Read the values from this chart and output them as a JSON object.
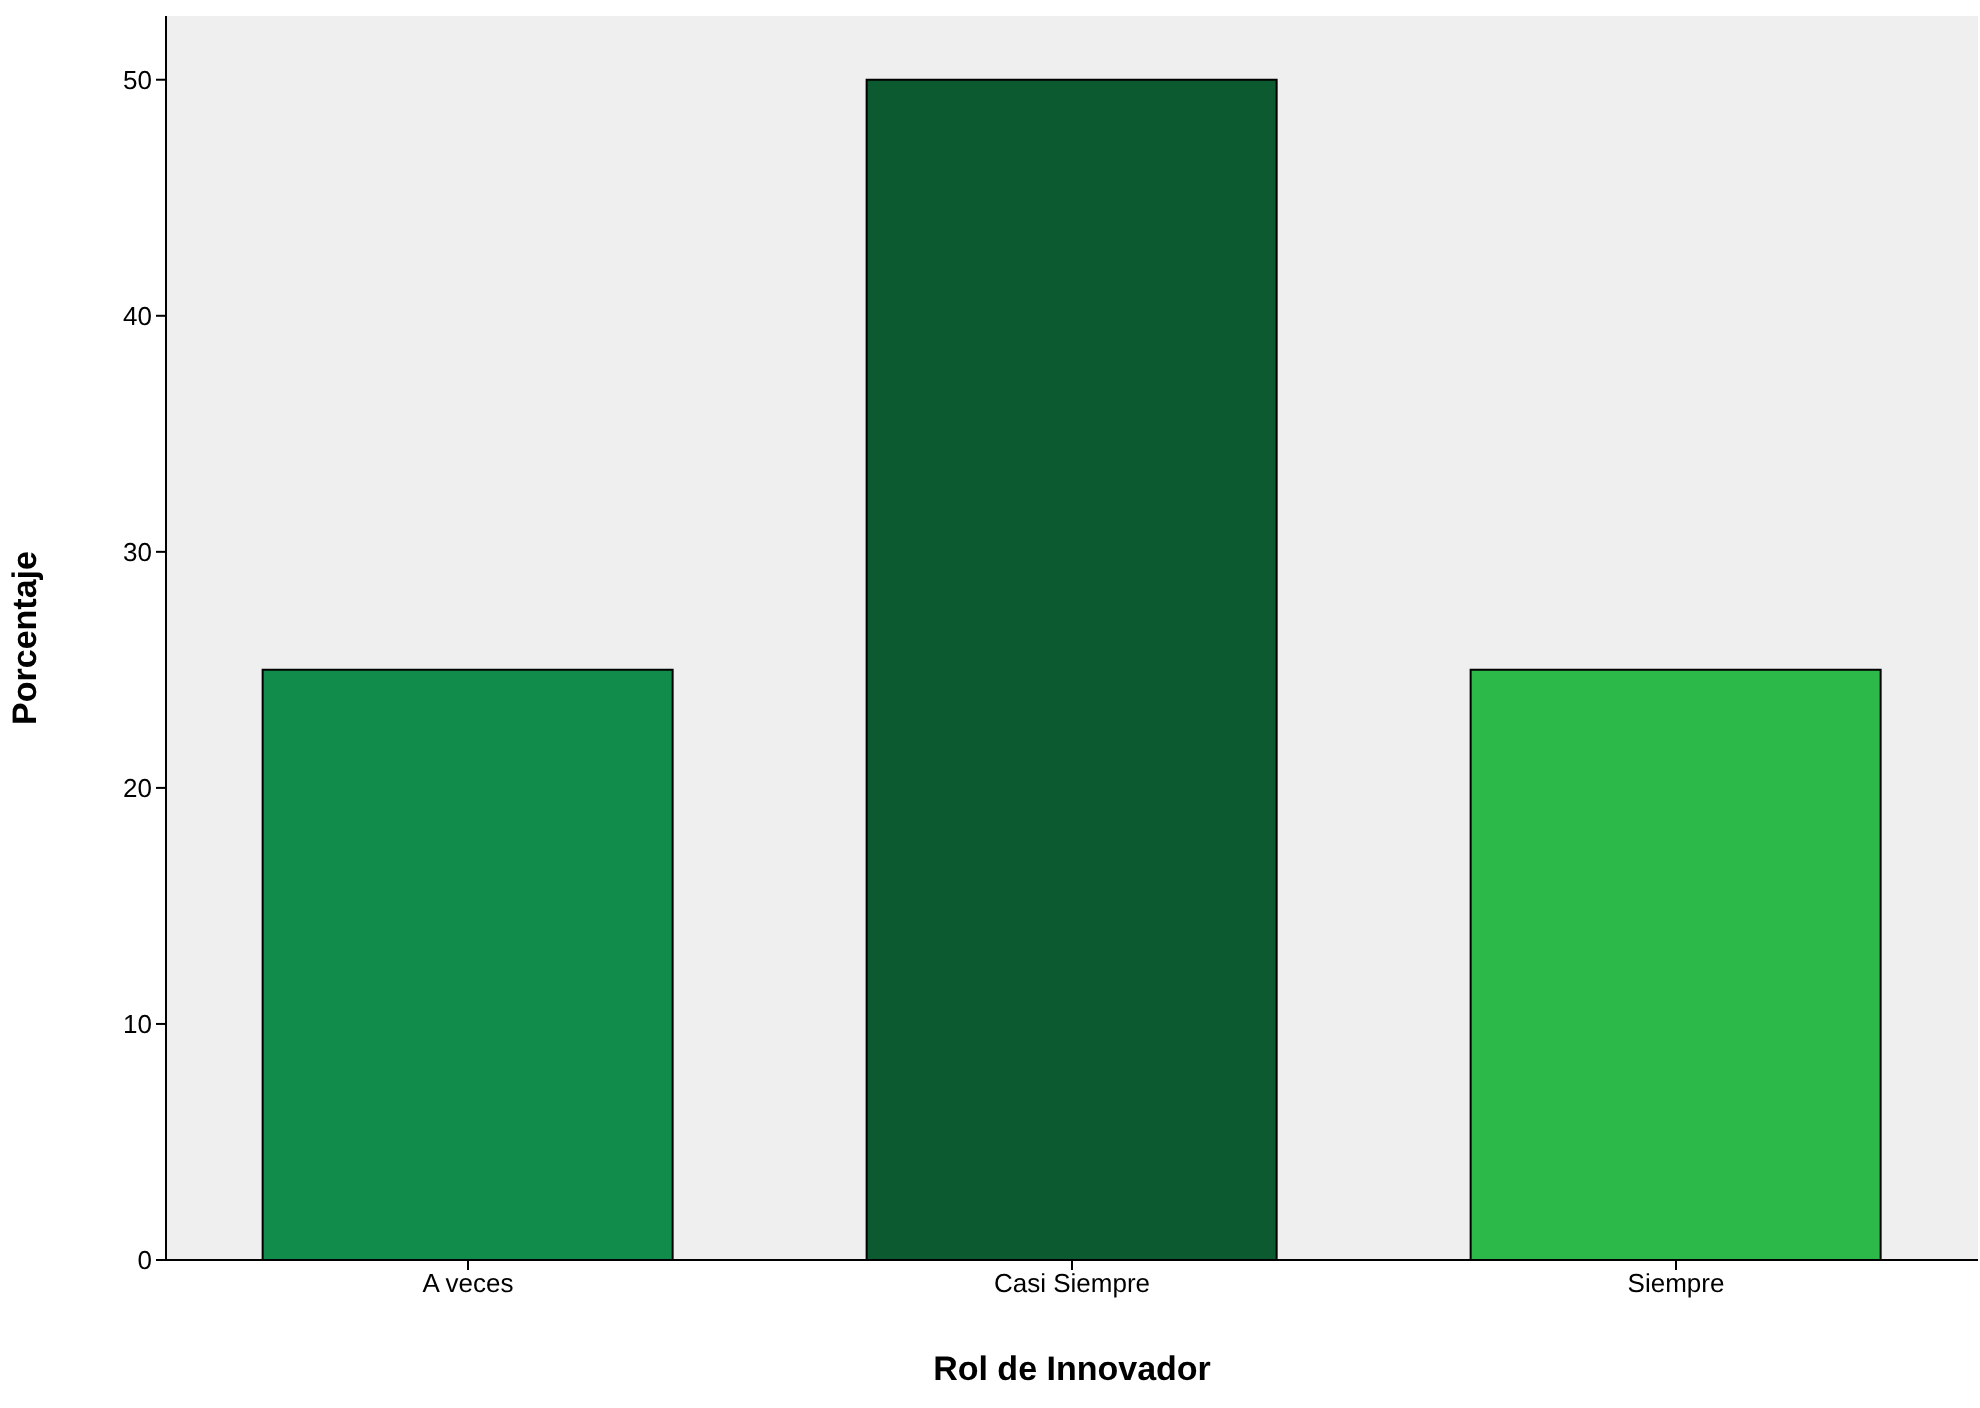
{
  "chart_data": {
    "type": "bar",
    "xlabel": "Rol de Innovador",
    "ylabel": "Porcentaje",
    "categories": [
      "A veces",
      "Casi Siempre",
      "Siempre"
    ],
    "values": [
      25,
      50,
      25
    ],
    "colors": [
      "#118c4a",
      "#0b5a30",
      "#2db84a"
    ],
    "ylim": [
      0,
      52.7
    ],
    "yticks": [
      0,
      10,
      20,
      30,
      40,
      50
    ]
  }
}
